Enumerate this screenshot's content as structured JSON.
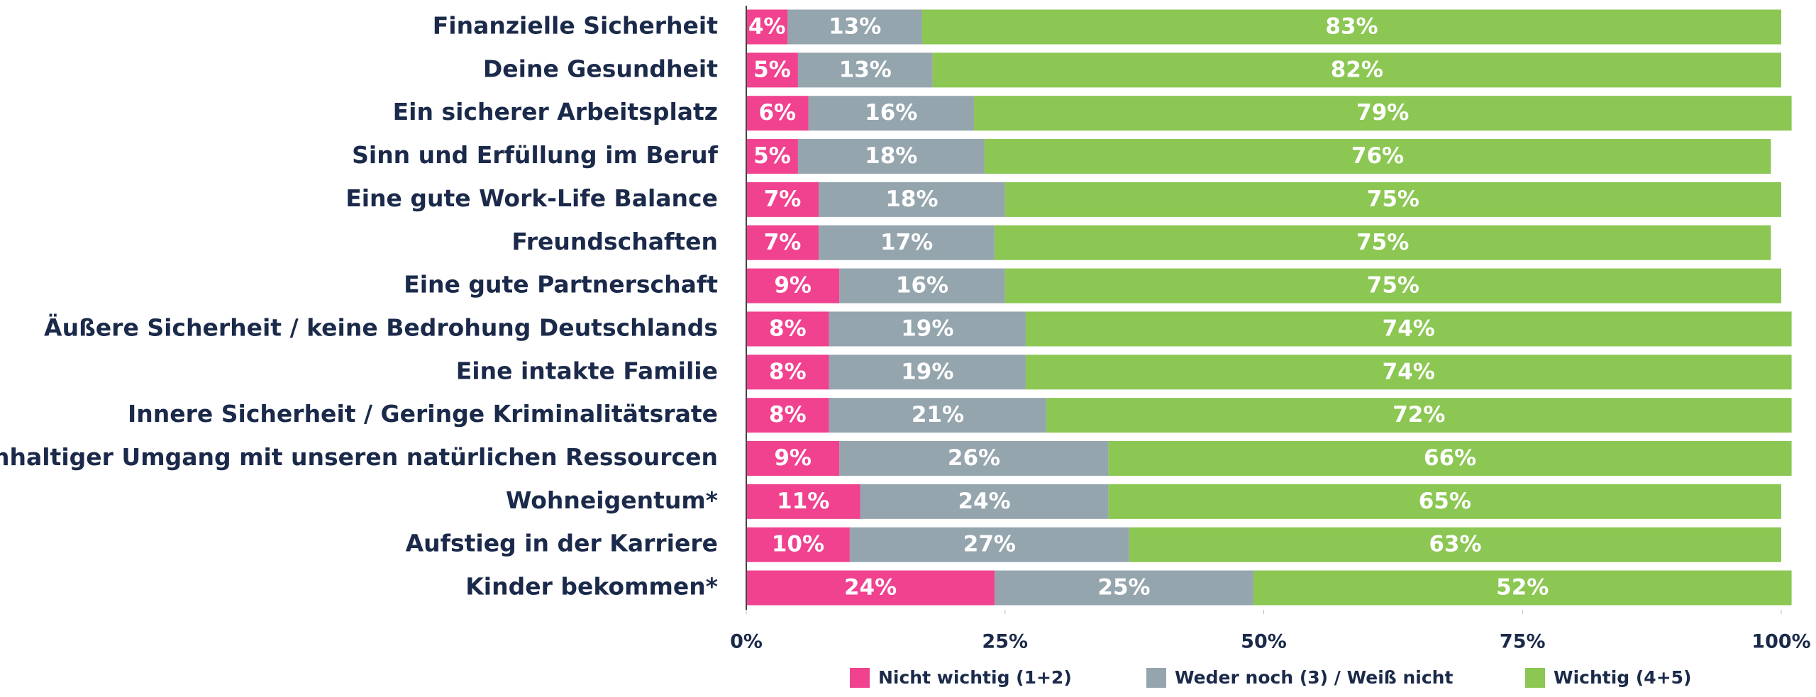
{
  "chart_data": {
    "type": "stacked_barh",
    "categories": [
      "Finanzielle Sicherheit",
      "Deine Gesundheit",
      "Ein sicherer Arbeitsplatz",
      "Sinn und Erfüllung im Beruf",
      "Eine gute Work-Life Balance",
      "Freundschaften",
      "Eine gute Partnerschaft",
      "Äußere Sicherheit / keine Bedrohung Deutschlands",
      "Eine intakte Familie",
      "Innere Sicherheit / Geringe Kriminalitätsrate",
      "Nachhaltiger Umgang mit unseren natürlichen Ressourcen",
      "Wohneigentum*",
      "Aufstieg in der Karriere",
      "Kinder bekommen*"
    ],
    "series": [
      {
        "name": "Nicht wichtig (1+2)",
        "color": "#f0428f",
        "values": [
          4,
          5,
          6,
          5,
          7,
          7,
          9,
          8,
          8,
          8,
          9,
          11,
          10,
          24
        ],
        "value_labels": [
          "4%",
          "5%",
          "6%",
          "5%",
          "7%",
          "7%",
          "9%",
          "8%",
          "8%",
          "8%",
          "9%",
          "11%",
          "10%",
          "24%"
        ]
      },
      {
        "name": "Weder noch (3) / Weiß nicht",
        "color": "#95a5ae",
        "values": [
          13,
          13,
          16,
          18,
          18,
          17,
          16,
          19,
          19,
          21,
          26,
          24,
          27,
          25
        ],
        "value_labels": [
          "13%",
          "13%",
          "16%",
          "18%",
          "18%",
          "17%",
          "16%",
          "19%",
          "19%",
          "21%",
          "26%",
          "24%",
          "27%",
          "25%"
        ]
      },
      {
        "name": "Wichtig (4+5)",
        "color": "#8bc752",
        "values": [
          83,
          82,
          79,
          76,
          75,
          75,
          75,
          74,
          74,
          72,
          66,
          65,
          63,
          52
        ],
        "value_labels": [
          "83%",
          "82%",
          "79%",
          "76%",
          "75%",
          "75%",
          "75%",
          "74%",
          "74%",
          "72%",
          "66%",
          "65%",
          "63%",
          "52%"
        ]
      }
    ],
    "xlim": [
      0,
      100
    ],
    "xticks": [
      {
        "value": 0,
        "label": "0%"
      },
      {
        "value": 25,
        "label": "25%"
      },
      {
        "value": 50,
        "label": "50%"
      },
      {
        "value": 75,
        "label": "75%"
      },
      {
        "value": 100,
        "label": "100%"
      }
    ]
  }
}
